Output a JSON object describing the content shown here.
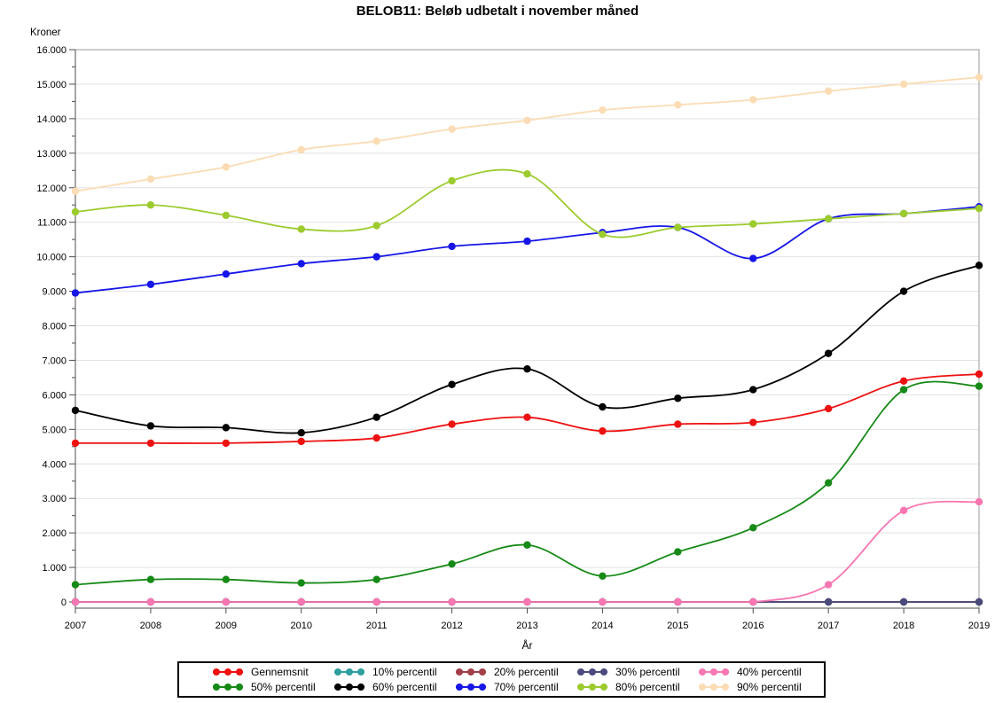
{
  "page": {
    "title": "BELOB11: Beløb udbetalt i november måned"
  },
  "chart_data": {
    "type": "line",
    "title": "BELOB11: Beløb udbetalt i november måned",
    "ylabel": "Kroner",
    "xlabel": "År",
    "categories": [
      2007,
      2008,
      2009,
      2010,
      2011,
      2012,
      2013,
      2014,
      2015,
      2016,
      2017,
      2018,
      2019
    ],
    "x_tick_labels": [
      "2007",
      "2008",
      "2009",
      "2010",
      "2011",
      "2012",
      "2013",
      "2014",
      "2015",
      "2016",
      "2017",
      "2018",
      "2019"
    ],
    "ylim": [
      0,
      16000
    ],
    "y_major_step": 1000,
    "y_minor_step": 500,
    "y_tick_labels": [
      "0",
      "1.000",
      "2.000",
      "3.000",
      "4.000",
      "5.000",
      "6.000",
      "7.000",
      "8.000",
      "9.000",
      "10.000",
      "11.000",
      "12.000",
      "13.000",
      "14.000",
      "15.000",
      "16.000"
    ],
    "grid": "horizontal",
    "legend_position": "bottom",
    "interpolation": "spline",
    "series": [
      {
        "name": "Gennemsnit",
        "color": "#EE1111",
        "values": [
          4600,
          4600,
          4600,
          4650,
          4750,
          5150,
          5350,
          4950,
          5150,
          5200,
          5600,
          6400,
          6600
        ]
      },
      {
        "name": "10% percentil",
        "color": "#2E9E9E",
        "values": [
          0,
          0,
          0,
          0,
          0,
          0,
          0,
          0,
          0,
          0,
          0,
          0,
          0
        ]
      },
      {
        "name": "20% percentil",
        "color": "#A23E48",
        "values": [
          0,
          0,
          0,
          0,
          0,
          0,
          0,
          0,
          0,
          0,
          0,
          0,
          0
        ]
      },
      {
        "name": "30% percentil",
        "color": "#4A4A7D",
        "values": [
          0,
          0,
          0,
          0,
          0,
          0,
          0,
          0,
          0,
          0,
          0,
          0,
          0
        ]
      },
      {
        "name": "40% percentil",
        "color": "#F876B1",
        "values": [
          0,
          0,
          0,
          0,
          0,
          0,
          0,
          0,
          0,
          0,
          500,
          2650,
          2900
        ]
      },
      {
        "name": "50% percentil",
        "color": "#168A16",
        "values": [
          500,
          650,
          650,
          550,
          650,
          1100,
          1650,
          750,
          1450,
          2150,
          3450,
          6150,
          6250
        ]
      },
      {
        "name": "60% percentil",
        "color": "#000000",
        "values": [
          5550,
          5100,
          5050,
          4900,
          5350,
          6300,
          6750,
          5650,
          5900,
          6150,
          7200,
          9000,
          9750
        ]
      },
      {
        "name": "70% percentil",
        "color": "#1616E8",
        "values": [
          8950,
          9200,
          9500,
          9800,
          10000,
          10300,
          10450,
          10700,
          10850,
          9950,
          11100,
          11250,
          11450
        ]
      },
      {
        "name": "80% percentil",
        "color": "#9CCB2D",
        "values": [
          11300,
          11500,
          11200,
          10800,
          10900,
          12200,
          12400,
          10650,
          10850,
          10950,
          11100,
          11250,
          11400
        ]
      },
      {
        "name": "90% percentil",
        "color": "#FBDCB4",
        "values": [
          11900,
          12250,
          12600,
          13100,
          13350,
          13700,
          13950,
          14250,
          14400,
          14550,
          14800,
          15000,
          15200
        ]
      }
    ],
    "colors": {
      "grid": "#E2E2E2",
      "frame": "#9A9A9A",
      "axis": "#4D4D4D",
      "tick_label": "#000000"
    }
  }
}
